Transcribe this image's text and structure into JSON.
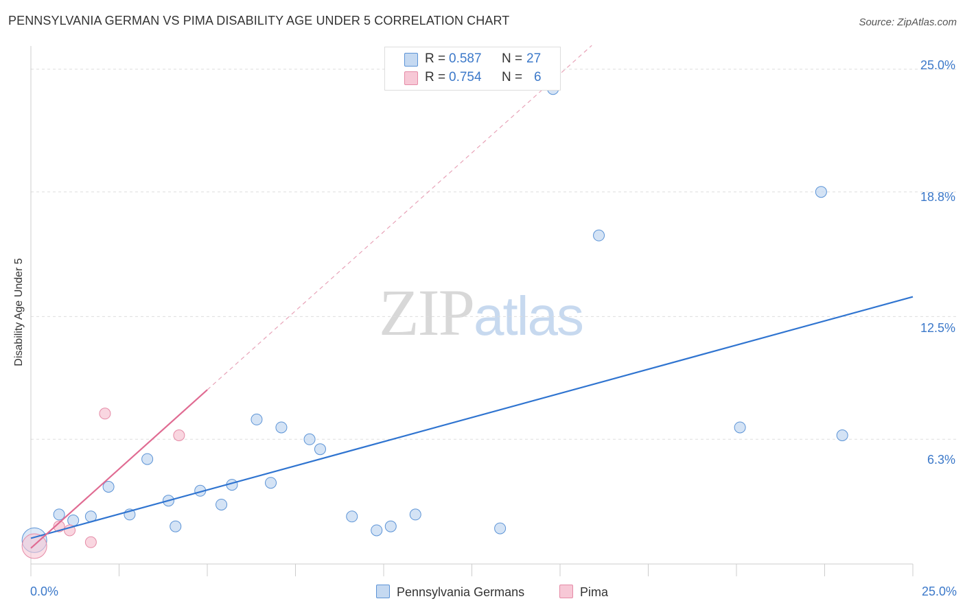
{
  "chart_data": {
    "type": "scatter",
    "title": "PENNSYLVANIA GERMAN VS PIMA DISABILITY AGE UNDER 5 CORRELATION CHART",
    "source": "Source: ZipAtlas.com",
    "xlabel": "",
    "ylabel": "Disability Age Under 5",
    "xlim": [
      0,
      25
    ],
    "ylim": [
      0,
      26
    ],
    "x_tick_labels": [
      "0.0%",
      "25.0%"
    ],
    "y_ticks": [
      6.3,
      12.5,
      18.8,
      25.0
    ],
    "y_tick_labels": [
      "6.3%",
      "12.5%",
      "18.8%",
      "25.0%"
    ],
    "watermark": {
      "zip": "ZIP",
      "atlas": "atlas"
    },
    "legend": [
      {
        "r_label": "R =",
        "r_value": "0.587",
        "n_label": "N =",
        "n_value": "27"
      },
      {
        "r_label": "R =",
        "r_value": "0.754",
        "n_label": "N =",
        "n_value": "6"
      }
    ],
    "series": [
      {
        "name": "Pennsylvania Germans",
        "color": "#5b93d6",
        "fill": "#c5d9f1",
        "trend": {
          "x": [
            0,
            25
          ],
          "y": [
            1.3,
            13.5
          ],
          "color": "#2f74d0"
        },
        "points": [
          {
            "x": 0.1,
            "y": 1.2,
            "big": true
          },
          {
            "x": 0.8,
            "y": 2.5
          },
          {
            "x": 1.2,
            "y": 2.2
          },
          {
            "x": 1.7,
            "y": 2.4
          },
          {
            "x": 2.2,
            "y": 3.9
          },
          {
            "x": 2.8,
            "y": 2.5
          },
          {
            "x": 3.3,
            "y": 5.3
          },
          {
            "x": 3.9,
            "y": 3.2
          },
          {
            "x": 4.1,
            "y": 1.9
          },
          {
            "x": 4.8,
            "y": 3.7
          },
          {
            "x": 5.4,
            "y": 3.0
          },
          {
            "x": 5.7,
            "y": 4.0
          },
          {
            "x": 6.4,
            "y": 7.3
          },
          {
            "x": 6.8,
            "y": 4.1
          },
          {
            "x": 7.1,
            "y": 6.9
          },
          {
            "x": 7.9,
            "y": 6.3
          },
          {
            "x": 8.2,
            "y": 5.8
          },
          {
            "x": 9.1,
            "y": 2.4
          },
          {
            "x": 9.8,
            "y": 1.7
          },
          {
            "x": 10.2,
            "y": 1.9
          },
          {
            "x": 10.9,
            "y": 2.5
          },
          {
            "x": 13.3,
            "y": 1.8
          },
          {
            "x": 14.8,
            "y": 24.0
          },
          {
            "x": 16.1,
            "y": 16.6
          },
          {
            "x": 20.1,
            "y": 6.9
          },
          {
            "x": 22.4,
            "y": 18.8
          },
          {
            "x": 23.0,
            "y": 6.5
          }
        ]
      },
      {
        "name": "Pima",
        "color": "#e58aa6",
        "fill": "#f7c8d6",
        "trend": {
          "x": [
            0,
            5.0
          ],
          "y": [
            0.8,
            8.8
          ],
          "color": "#e06b92"
        },
        "trend_dashed": {
          "x": [
            5.0,
            15.9
          ],
          "y": [
            8.8,
            26.2
          ],
          "color": "#e8a3b8"
        },
        "points": [
          {
            "x": 0.1,
            "y": 0.9,
            "big": true
          },
          {
            "x": 0.8,
            "y": 1.9
          },
          {
            "x": 1.1,
            "y": 1.7
          },
          {
            "x": 1.7,
            "y": 1.1
          },
          {
            "x": 2.1,
            "y": 7.6
          },
          {
            "x": 4.2,
            "y": 6.5
          }
        ]
      }
    ]
  }
}
